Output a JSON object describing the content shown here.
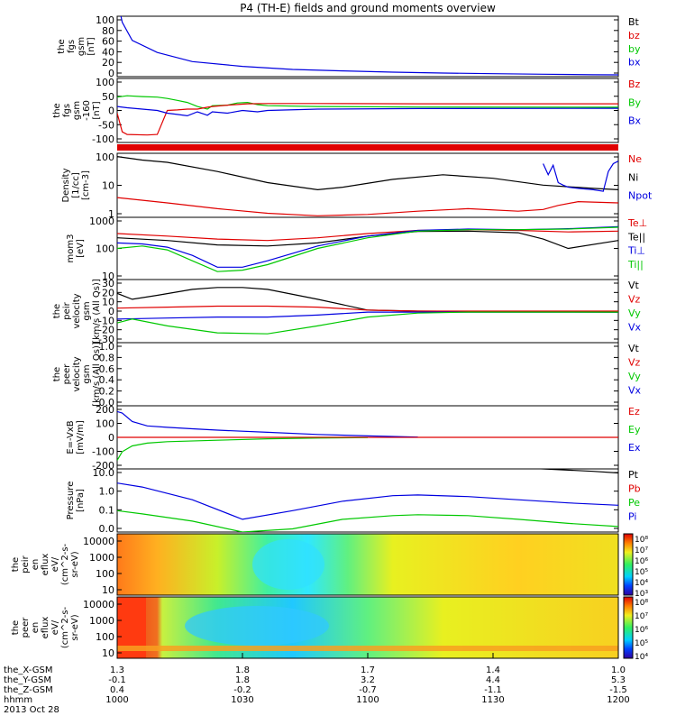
{
  "chart_data": {
    "type": "line",
    "title": "P4 (TH-E) fields and ground moments overview",
    "colors": {
      "black": "#000000",
      "red": "#e00000",
      "green": "#00c800",
      "blue": "#0000e0"
    },
    "panels": [
      {
        "id": "fgs",
        "ylabel": [
          "the",
          "fgs",
          "gsm",
          "[nT]"
        ],
        "ticks": [
          "100",
          "80",
          "60",
          "40",
          "20",
          "0"
        ],
        "ylim": [
          0,
          100
        ],
        "scale": "linear",
        "legend": [
          {
            "label": "Bt",
            "color": "#000000"
          },
          {
            "label": "bz",
            "color": "#e00000"
          },
          {
            "label": "by",
            "color": "#00c800"
          },
          {
            "label": "bx",
            "color": "#0000e0"
          }
        ],
        "series": [
          {
            "name": "bx",
            "color": "#0000e0",
            "x": [
              0,
              1,
              3,
              8,
              15,
              25,
              35,
              45,
              55,
              65,
              75,
              85,
              95,
              100
            ],
            "y": [
              130,
              90,
              60,
              40,
              25,
              17,
              12,
              9.5,
              7.5,
              6,
              5,
              4,
              3.2,
              3
            ]
          }
        ]
      },
      {
        "id": "fgs_f",
        "ylabel": [
          "the",
          "fgs",
          "gsm",
          "-160",
          "[nT]"
        ],
        "ticks": [
          "100",
          "50",
          "0",
          "-50",
          "-100"
        ],
        "ylim": [
          -130,
          110
        ],
        "scale": "linear",
        "legend": [
          {
            "label": "Bz",
            "color": "#e00000"
          },
          {
            "label": "By",
            "color": "#00c800"
          },
          {
            "label": "Bx",
            "color": "#0000e0"
          }
        ],
        "series": [
          {
            "name": "By",
            "color": "#00c800",
            "x": [
              0,
              2,
              5,
              8,
              10,
              12,
              14,
              16,
              18,
              19,
              22,
              24,
              26,
              28,
              30,
              40,
              60,
              100
            ],
            "y": [
              40,
              45,
              42,
              40,
              35,
              28,
              20,
              5,
              -5,
              8,
              10,
              18,
              20,
              12,
              8,
              5,
              3,
              2
            ]
          },
          {
            "name": "Bz",
            "color": "#e00000",
            "x": [
              0,
              1,
              2,
              6,
              8,
              10,
              12,
              14,
              16,
              18,
              19,
              22,
              26,
              30,
              40,
              60,
              100
            ],
            "y": [
              -20,
              -90,
              -100,
              -102,
              -100,
              -10,
              -8,
              -5,
              -5,
              2,
              5,
              10,
              15,
              16,
              16,
              15,
              15
            ]
          },
          {
            "name": "Bx",
            "color": "#0000e0",
            "x": [
              0,
              2,
              5,
              8,
              10,
              12,
              14,
              16,
              18,
              19,
              22,
              25,
              28,
              30,
              40,
              60,
              100
            ],
            "y": [
              5,
              0,
              -5,
              -10,
              -20,
              -25,
              -30,
              -15,
              -28,
              -15,
              -20,
              -10,
              -15,
              -10,
              -5,
              -3,
              -2
            ]
          }
        ]
      },
      {
        "id": "dens",
        "ylabel": [
          "Density",
          "[1/cc]",
          "[cm-3]"
        ],
        "ticks": [
          "100",
          "10",
          "1"
        ],
        "ylim": [
          0.7,
          200
        ],
        "scale": "log",
        "legend": [
          {
            "label": "Ne",
            "color": "#e00000"
          },
          {
            "label": "Ni",
            "color": "#000000"
          },
          {
            "label": "Npot",
            "color": "#0000e0"
          }
        ],
        "series": [
          {
            "name": "Ni",
            "color": "#000000",
            "x": [
              0,
              5,
              10,
              20,
              30,
              40,
              45,
              55,
              65,
              75,
              85,
              95,
              100
            ],
            "y": [
              150,
              110,
              90,
              40,
              15,
              8,
              10,
              20,
              30,
              22,
              12,
              9,
              8
            ]
          },
          {
            "name": "Ne",
            "color": "#e00000",
            "x": [
              0,
              10,
              20,
              30,
              40,
              50,
              60,
              70,
              80,
              85,
              88,
              92,
              100
            ],
            "y": [
              4,
              2.5,
              1.5,
              1,
              0.8,
              0.9,
              1.2,
              1.5,
              1.2,
              1.4,
              2,
              2.8,
              2.5
            ]
          },
          {
            "name": "Npot",
            "color": "#0000e0",
            "x": [
              85,
              86,
              87,
              88,
              89,
              90,
              92,
              95,
              97,
              98,
              99,
              100
            ],
            "y": [
              80,
              30,
              70,
              15,
              12,
              10,
              9,
              8,
              7,
              40,
              80,
              100
            ]
          }
        ]
      },
      {
        "id": "temp",
        "ylabel": [
          "mom3",
          "[eV]"
        ],
        "ticks": [
          "1000",
          "100",
          "10"
        ],
        "ylim": [
          10,
          1000
        ],
        "scale": "log",
        "legend": [
          {
            "label": "Te⊥",
            "color": "#e00000"
          },
          {
            "label": "Te||",
            "color": "#000000"
          },
          {
            "label": "Ti⊥",
            "color": "#0000e0"
          },
          {
            "label": "Ti||",
            "color": "#00c800"
          }
        ],
        "series": [
          {
            "name": "Te",
            "color": "#e00000",
            "x": [
              0,
              10,
              20,
              30,
              40,
              50,
              60,
              70,
              80,
              90,
              100
            ],
            "y": [
              300,
              250,
              200,
              180,
              220,
              300,
              380,
              400,
              380,
              340,
              360
            ]
          },
          {
            "name": "Tell",
            "color": "#000000",
            "x": [
              0,
              10,
              20,
              30,
              40,
              50,
              60,
              70,
              80,
              85,
              90,
              100
            ],
            "y": [
              220,
              180,
              130,
              120,
              150,
              250,
              350,
              360,
              320,
              200,
              100,
              180
            ]
          },
          {
            "name": "Ti",
            "color": "#0000e0",
            "x": [
              0,
              5,
              10,
              15,
              20,
              25,
              30,
              40,
              50,
              60,
              70,
              80,
              90,
              100
            ],
            "y": [
              150,
              140,
              110,
              60,
              25,
              25,
              40,
              120,
              250,
              380,
              420,
              400,
              430,
              500
            ]
          },
          {
            "name": "Till",
            "color": "#00c800",
            "x": [
              0,
              5,
              10,
              15,
              20,
              25,
              30,
              40,
              50,
              60,
              70,
              80,
              90,
              100
            ],
            "y": [
              100,
              120,
              90,
              40,
              18,
              20,
              30,
              100,
              220,
              360,
              400,
              400,
              420,
              480
            ]
          }
        ]
      },
      {
        "id": "peir",
        "ylabel": [
          "the",
          "peir",
          "velocity",
          "gsm",
          "[km/s (All Qs)]"
        ],
        "ticks": [
          "30",
          "20",
          "10",
          "0",
          "-10",
          "-20",
          "-30"
        ],
        "ylim": [
          -32,
          32
        ],
        "scale": "linear",
        "legend": [
          {
            "label": "Vt",
            "color": "#000000"
          },
          {
            "label": "Vz",
            "color": "#e00000"
          },
          {
            "label": "Vy",
            "color": "#00c800"
          },
          {
            "label": "Vx",
            "color": "#0000e0"
          }
        ],
        "series": [
          {
            "name": "Vt",
            "color": "#000000",
            "x": [
              0,
              3,
              8,
              15,
              20,
              25,
              30,
              40,
              50,
              60,
              100
            ],
            "y": [
              18,
              12,
              16,
              22,
              24,
              24,
              22,
              12,
              1,
              0,
              -1
            ]
          },
          {
            "name": "Vz",
            "color": "#e00000",
            "x": [
              0,
              10,
              20,
              30,
              40,
              50,
              60,
              100
            ],
            "y": [
              3,
              4,
              5,
              5,
              4,
              1,
              0,
              0
            ]
          },
          {
            "name": "Vx",
            "color": "#0000e0",
            "x": [
              0,
              10,
              20,
              30,
              40,
              50,
              100
            ],
            "y": [
              -8,
              -7,
              -6,
              -6,
              -4,
              -1,
              -1
            ]
          },
          {
            "name": "Vy",
            "color": "#00c800",
            "x": [
              0,
              3,
              10,
              20,
              30,
              40,
              50,
              60,
              70,
              100
            ],
            "y": [
              -12,
              -8,
              -15,
              -22,
              -23,
              -15,
              -6,
              -2,
              -1,
              -1
            ]
          }
        ]
      },
      {
        "id": "peer",
        "ylabel": [
          "the",
          "peer",
          "velocity",
          "gsm",
          "[km/s (All Qs)]"
        ],
        "ticks": [
          "1.0",
          "0.8",
          "0.6",
          "0.4",
          "0.2",
          "0.0"
        ],
        "ylim": [
          0,
          1
        ],
        "scale": "linear",
        "legend": [
          {
            "label": "Vt",
            "color": "#000000"
          },
          {
            "label": "Vz",
            "color": "#e00000"
          },
          {
            "label": "Vy",
            "color": "#00c800"
          },
          {
            "label": "Vx",
            "color": "#0000e0"
          }
        ],
        "series": []
      },
      {
        "id": "efield",
        "ylabel": [
          "E=-VxB",
          "[mV/m]"
        ],
        "ticks": [
          "200",
          "100",
          "0",
          "-100",
          "-200"
        ],
        "ylim": [
          -220,
          220
        ],
        "scale": "linear",
        "legend": [
          {
            "label": "Ez",
            "color": "#e00000"
          },
          {
            "label": "Ey",
            "color": "#00c800"
          },
          {
            "label": "Ex",
            "color": "#0000e0"
          }
        ],
        "series": [
          {
            "name": "Ez",
            "color": "#e00000",
            "x": [
              0,
              100
            ],
            "y": [
              0,
              0
            ]
          },
          {
            "name": "Ex",
            "color": "#0000e0",
            "x": [
              0,
              1,
              3,
              6,
              10,
              15,
              20,
              30,
              40,
              50,
              60
            ],
            "y": [
              180,
              170,
              110,
              80,
              70,
              60,
              50,
              35,
              20,
              10,
              2
            ]
          },
          {
            "name": "Ey",
            "color": "#00c800",
            "x": [
              0,
              1,
              3,
              6,
              10,
              20,
              30,
              40,
              50
            ],
            "y": [
              -160,
              -100,
              -60,
              -40,
              -30,
              -20,
              -10,
              -5,
              -2
            ]
          }
        ]
      },
      {
        "id": "press",
        "ylabel": [
          "Pressure",
          "[nPa]"
        ],
        "ticks": [
          "10.0",
          "1.0",
          "0.1",
          "0.0"
        ],
        "ylim": [
          0.01,
          30
        ],
        "scale": "log",
        "legend": [
          {
            "label": "Pt",
            "color": "#000000"
          },
          {
            "label": "Pb",
            "color": "#e00000"
          },
          {
            "label": "Pe",
            "color": "#00c800"
          },
          {
            "label": "Pi",
            "color": "#0000e0"
          }
        ],
        "series": [
          {
            "name": "Pt",
            "color": "#000000",
            "x": [
              75,
              85,
              95,
              100
            ],
            "y": [
              40,
              30,
              22,
              18
            ]
          },
          {
            "name": "Pi",
            "color": "#0000e0",
            "x": [
              0,
              5,
              15,
              25,
              35,
              45,
              55,
              60,
              70,
              80,
              90,
              100
            ],
            "y": [
              5,
              3,
              0.6,
              0.05,
              0.15,
              0.5,
              1.0,
              1.1,
              0.9,
              0.6,
              0.4,
              0.3
            ]
          },
          {
            "name": "Pe",
            "color": "#00c800",
            "x": [
              0,
              5,
              15,
              25,
              35,
              45,
              55,
              60,
              70,
              80,
              90,
              100
            ],
            "y": [
              0.15,
              0.1,
              0.04,
              0.01,
              0.015,
              0.05,
              0.08,
              0.09,
              0.08,
              0.05,
              0.03,
              0.02
            ]
          }
        ]
      }
    ],
    "spectrograms": [
      {
        "id": "peir_en",
        "ylabel": [
          "the",
          "peir",
          "en",
          "eflux",
          "eV/",
          "(cm^2-s-",
          "sr-eV)"
        ],
        "ticks": [
          "10000",
          "1000",
          "100",
          "10"
        ],
        "colorbar_ticks": [
          "10⁸",
          "10⁷",
          "10⁶",
          "10⁵",
          "10⁴",
          "10³"
        ]
      },
      {
        "id": "peer_en",
        "ylabel": [
          "the",
          "peer",
          "en",
          "eflux",
          "eV/",
          "(cm^2-s-",
          "sr-eV)"
        ],
        "ticks": [
          "10000",
          "1000",
          "100",
          "10"
        ],
        "colorbar_ticks": [
          "10⁸",
          "10⁷",
          "10⁶",
          "10⁵",
          "10⁴"
        ]
      }
    ],
    "xaxis": {
      "rows": [
        {
          "label": "the_X-GSM",
          "values": [
            "1.3",
            "1.8",
            "1.7",
            "1.4",
            "1.0"
          ]
        },
        {
          "label": "the_Y-GSM",
          "values": [
            "-0.1",
            "1.8",
            "3.2",
            "4.4",
            "5.3"
          ]
        },
        {
          "label": "the_Z-GSM",
          "values": [
            "0.4",
            "-0.2",
            "-0.7",
            "-1.1",
            "-1.5"
          ]
        },
        {
          "label": "hhmm",
          "values": [
            "1000",
            "1030",
            "1100",
            "1130",
            "1200"
          ]
        }
      ],
      "date": "2013 Oct 28"
    }
  }
}
